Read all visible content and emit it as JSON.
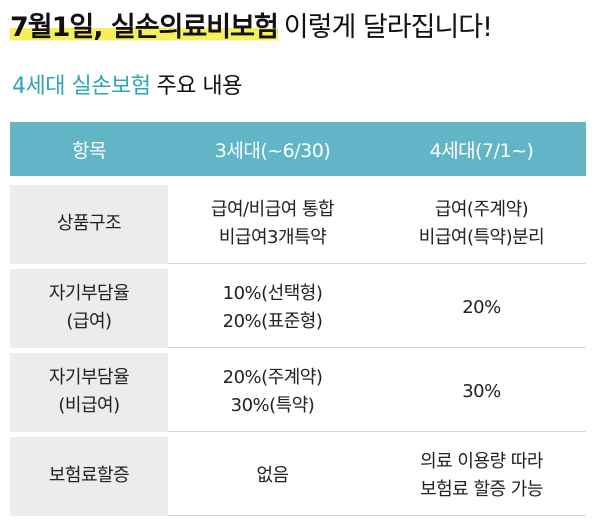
{
  "header": {
    "highlight": "7월1일, 실손의료비보험",
    "rest": "이렇게 달라집니다!"
  },
  "subheader": {
    "accent": "4세대 실손보험",
    "plain": "주요 내용"
  },
  "table": {
    "columns": [
      "항목",
      "3세대(~6/30)",
      "4세대(7/1~)"
    ],
    "rows": [
      {
        "item": [
          "상품구조"
        ],
        "gen3": [
          "급여/비급여 통합",
          "비급여3개특약"
        ],
        "gen4": [
          "급여(주계약)",
          "비급여(특약)분리"
        ]
      },
      {
        "item": [
          "자기부담율",
          "(급여)"
        ],
        "gen3": [
          "10%(선택형)",
          "20%(표준형)"
        ],
        "gen4": [
          "20%"
        ]
      },
      {
        "item": [
          "자기부담율",
          "(비급여)"
        ],
        "gen3": [
          "20%(주계약)",
          "30%(특약)"
        ],
        "gen4": [
          "30%"
        ]
      },
      {
        "item": [
          "보험료할증"
        ],
        "gen3": [
          "없음"
        ],
        "gen4": [
          "의료 이용량 따라",
          "보험료 할증 가능"
        ]
      }
    ]
  }
}
